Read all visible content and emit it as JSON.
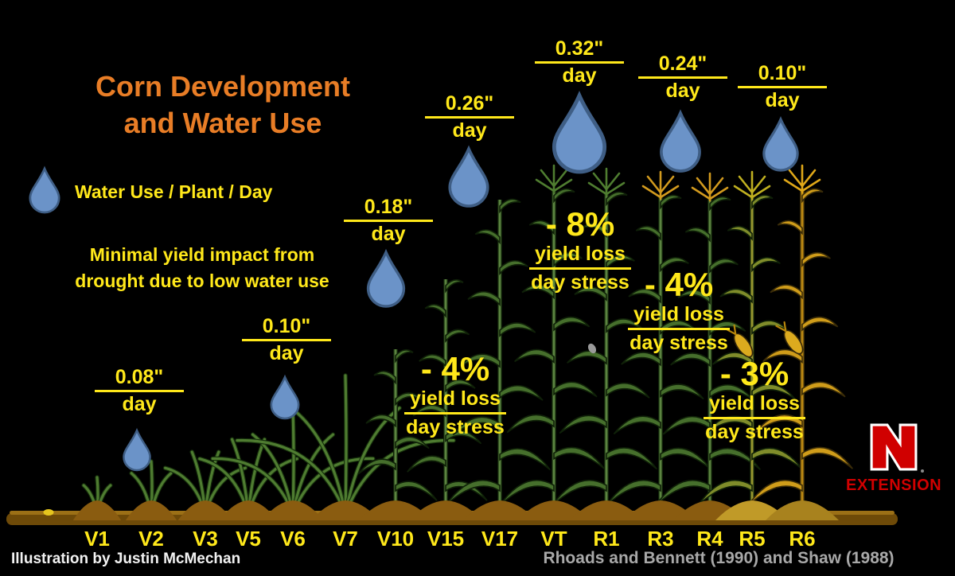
{
  "title": {
    "line1": "Corn Development",
    "line2": "and Water Use"
  },
  "legend": {
    "icon": "water-drop",
    "label": "Water Use / Plant / Day"
  },
  "note": {
    "line1": "Minimal yield impact from",
    "line2": "drought due to low water use"
  },
  "water_use_labels": [
    {
      "rate": "0.08\"",
      "unit": "day"
    },
    {
      "rate": "0.10\"",
      "unit": "day"
    },
    {
      "rate": "0.18\"",
      "unit": "day"
    },
    {
      "rate": "0.26\"",
      "unit": "day"
    },
    {
      "rate": "0.32\"",
      "unit": "day"
    },
    {
      "rate": "0.24\"",
      "unit": "day"
    },
    {
      "rate": "0.10\"",
      "unit": "day"
    }
  ],
  "yield_loss_labels": [
    {
      "percent": "- 4%",
      "numerator": "yield loss",
      "denominator": "day stress"
    },
    {
      "percent": "- 8%",
      "numerator": "yield loss",
      "denominator": "day stress"
    },
    {
      "percent": "- 4%",
      "numerator": "yield loss",
      "denominator": "day stress"
    },
    {
      "percent": "- 3%",
      "numerator": "yield loss",
      "denominator": "day stress"
    }
  ],
  "growth_stages": [
    "V1",
    "V2",
    "V3",
    "V5",
    "V6",
    "V7",
    "V10",
    "V15",
    "V17",
    "VT",
    "R1",
    "R3",
    "R4",
    "R5",
    "R6"
  ],
  "credits": {
    "illustration": "Illustration by Justin McMechan",
    "source": "Rhoads and Bennett (1990) and Shaw (1988)"
  },
  "logo": {
    "letter": "N",
    "label": "EXTENSION"
  },
  "colors": {
    "background": "#000000",
    "accent_yellow": "#ffe81a",
    "title_orange": "#e87d26",
    "credit_white": "#f2f2f2",
    "credit_gray": "#a8a8a8",
    "logo_red": "#d00000",
    "drop_fill": "#6b93c8",
    "drop_stroke": "#3f5e85"
  }
}
